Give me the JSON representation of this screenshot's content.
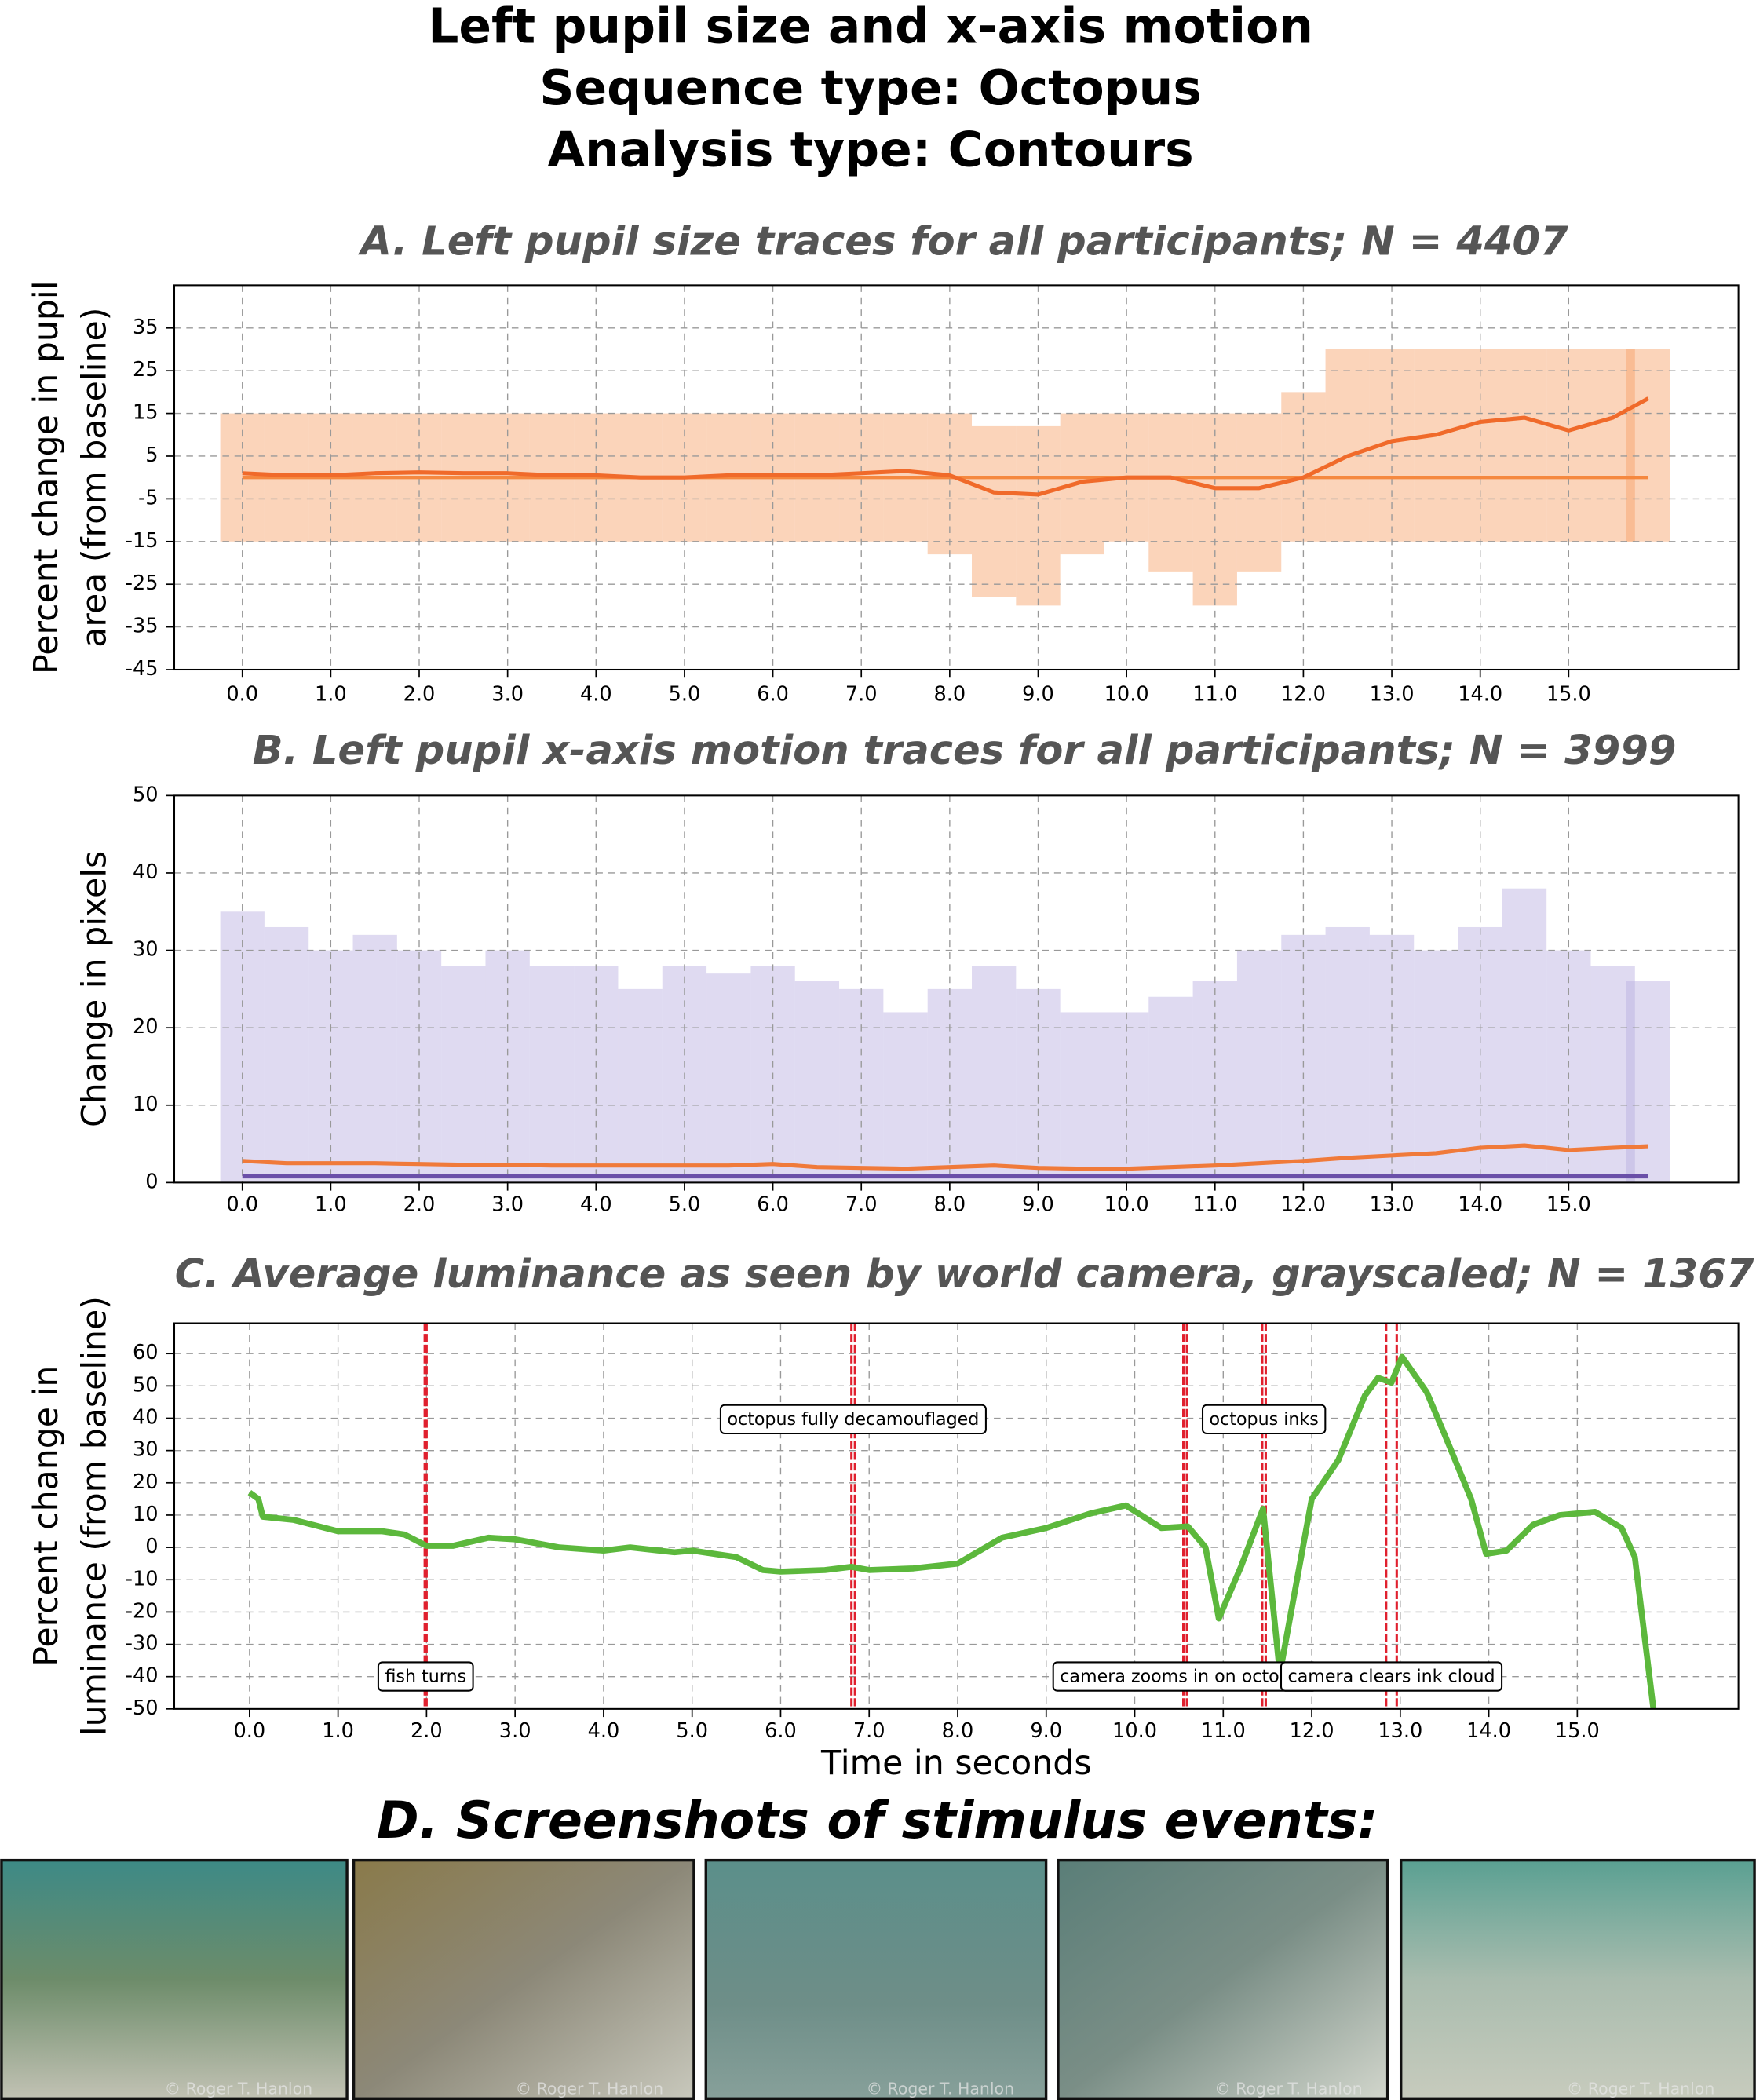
{
  "title_lines": [
    "Left pupil size and x-axis motion",
    "Sequence type: Octopus",
    "Analysis type: Contours"
  ],
  "chart_data": [
    {
      "type": "line",
      "title": "A. Left pupil size traces for all participants; N = 4407",
      "ylabel": [
        "Percent change in pupil",
        "area (from baseline)"
      ],
      "x": [
        0,
        0.5,
        1,
        1.5,
        2,
        2.5,
        3,
        3.5,
        4,
        4.5,
        5,
        5.5,
        6,
        6.5,
        7,
        7.5,
        8,
        8.5,
        9,
        9.5,
        10,
        10.5,
        11,
        11.5,
        12,
        12.5,
        13,
        13.5,
        14,
        14.5,
        15,
        15.5,
        15.9
      ],
      "series": [
        {
          "color": "#f06a2a",
          "values": [
            1,
            0.5,
            0.5,
            1,
            1.2,
            1,
            1,
            0.5,
            0.5,
            0,
            0,
            0.5,
            0.5,
            0.5,
            1,
            1.5,
            0.5,
            -3.5,
            -4,
            -1,
            0,
            0,
            -2.5,
            -2.5,
            0,
            5,
            8.5,
            10,
            13,
            14,
            11,
            14,
            18.5
          ]
        }
      ],
      "spread": {
        "color": "#f7a066",
        "low": [
          -15,
          -15,
          -15,
          -15,
          -15,
          -15,
          -15,
          -15,
          -15,
          -15,
          -15,
          -15,
          -15,
          -15,
          -15,
          -15,
          -18,
          -28,
          -30,
          -18,
          -15,
          -22,
          -30,
          -22,
          -15,
          -15,
          -15,
          -15,
          -15,
          -15,
          -15,
          -15,
          -15
        ],
        "high": [
          15,
          15,
          15,
          15,
          15,
          15,
          15,
          15,
          15,
          15,
          15,
          15,
          15,
          15,
          15,
          15,
          15,
          12,
          12,
          15,
          15,
          15,
          15,
          15,
          20,
          30,
          30,
          30,
          30,
          30,
          30,
          30,
          30
        ]
      },
      "reference_line": 0,
      "reference_color": "#f5883f",
      "xlim": [
        -0.77,
        16.92
      ],
      "ylim": [
        -45,
        45
      ],
      "xticks": [
        {
          "value": 0,
          "label": "0.0"
        },
        {
          "value": 1,
          "label": "1.0"
        },
        {
          "value": 2,
          "label": "2.0"
        },
        {
          "value": 3,
          "label": "3.0"
        },
        {
          "value": 4,
          "label": "4.0"
        },
        {
          "value": 5,
          "label": "5.0"
        },
        {
          "value": 6,
          "label": "6.0"
        },
        {
          "value": 7,
          "label": "7.0"
        },
        {
          "value": 8,
          "label": "8.0"
        },
        {
          "value": 9,
          "label": "9.0"
        },
        {
          "value": 10,
          "label": "10.0"
        },
        {
          "value": 11,
          "label": "11.0"
        },
        {
          "value": 12,
          "label": "12.0"
        },
        {
          "value": 13,
          "label": "13.0"
        },
        {
          "value": 14,
          "label": "14.0"
        },
        {
          "value": 15,
          "label": "15.0"
        }
      ],
      "yticks": [
        -45,
        -35,
        -25,
        -15,
        -5,
        5,
        15,
        25,
        35
      ],
      "grid": true
    },
    {
      "type": "line",
      "title": "B. Left pupil x-axis motion traces for all participants; N = 3999",
      "ylabel": [
        "Change in pixels"
      ],
      "x": [
        0,
        0.5,
        1,
        1.5,
        2,
        2.5,
        3,
        3.5,
        4,
        4.5,
        5,
        5.5,
        6,
        6.5,
        7,
        7.5,
        8,
        8.5,
        9,
        9.5,
        10,
        10.5,
        11,
        11.5,
        12,
        12.5,
        13,
        13.5,
        14,
        14.5,
        15,
        15.5,
        15.9
      ],
      "series": [
        {
          "color": "#6a4fa8",
          "values": [
            0.8,
            0.8,
            0.8,
            0.8,
            0.8,
            0.8,
            0.8,
            0.8,
            0.8,
            0.8,
            0.8,
            0.8,
            0.8,
            0.8,
            0.8,
            0.8,
            0.8,
            0.8,
            0.8,
            0.8,
            0.8,
            0.8,
            0.8,
            0.8,
            0.8,
            0.8,
            0.8,
            0.8,
            0.8,
            0.8,
            0.8,
            0.8,
            0.8
          ]
        },
        {
          "color": "#f07a3a",
          "values": [
            2.8,
            2.5,
            2.5,
            2.5,
            2.4,
            2.3,
            2.3,
            2.2,
            2.2,
            2.2,
            2.2,
            2.2,
            2.4,
            2.0,
            1.9,
            1.8,
            2.0,
            2.2,
            1.9,
            1.8,
            1.8,
            2.0,
            2.2,
            2.5,
            2.8,
            3.2,
            3.5,
            3.8,
            4.5,
            4.8,
            4.2,
            4.5,
            4.7
          ]
        }
      ],
      "spread": {
        "color": "#b9aee0",
        "low": [
          0,
          0,
          0,
          0,
          0,
          0,
          0,
          0,
          0,
          0,
          0,
          0,
          0,
          0,
          0,
          0,
          0,
          0,
          0,
          0,
          0,
          0,
          0,
          0,
          0,
          0,
          0,
          0,
          0,
          0,
          0,
          0,
          0
        ],
        "high": [
          35,
          33,
          30,
          32,
          30,
          28,
          30,
          28,
          28,
          25,
          28,
          27,
          28,
          26,
          25,
          22,
          25,
          28,
          25,
          22,
          22,
          24,
          26,
          30,
          32,
          33,
          32,
          30,
          33,
          38,
          30,
          28,
          26
        ]
      },
      "xlim": [
        -0.77,
        16.92
      ],
      "ylim": [
        0,
        50
      ],
      "xticks": [
        {
          "value": 0,
          "label": "0.0"
        },
        {
          "value": 1,
          "label": "1.0"
        },
        {
          "value": 2,
          "label": "2.0"
        },
        {
          "value": 3,
          "label": "3.0"
        },
        {
          "value": 4,
          "label": "4.0"
        },
        {
          "value": 5,
          "label": "5.0"
        },
        {
          "value": 6,
          "label": "6.0"
        },
        {
          "value": 7,
          "label": "7.0"
        },
        {
          "value": 8,
          "label": "8.0"
        },
        {
          "value": 9,
          "label": "9.0"
        },
        {
          "value": 10,
          "label": "10.0"
        },
        {
          "value": 11,
          "label": "11.0"
        },
        {
          "value": 12,
          "label": "12.0"
        },
        {
          "value": 13,
          "label": "13.0"
        },
        {
          "value": 14,
          "label": "14.0"
        },
        {
          "value": 15,
          "label": "15.0"
        }
      ],
      "yticks": [
        0,
        10,
        20,
        30,
        40,
        50
      ],
      "grid": true
    },
    {
      "type": "line",
      "title": "C. Average luminance as seen by world camera, grayscaled; N = 1367",
      "ylabel": [
        "Percent change in",
        "luminance (from baseline)"
      ],
      "xlabel": "Time in seconds",
      "x": [
        0,
        0.1,
        0.15,
        0.5,
        1,
        1.5,
        1.75,
        2,
        2.3,
        2.7,
        3,
        3.5,
        4,
        4.3,
        4.8,
        5,
        5.5,
        5.8,
        6,
        6.5,
        6.8,
        7,
        7.5,
        8,
        8.5,
        9,
        9.5,
        9.9,
        10.3,
        10.6,
        10.8,
        10.95,
        11.2,
        11.45,
        11.64,
        11.8,
        12.0,
        12.3,
        12.6,
        12.75,
        12.9,
        13.02,
        13.3,
        13.5,
        13.8,
        13.97,
        14.2,
        14.5,
        14.8,
        15.2,
        15.5,
        15.65,
        15.86
      ],
      "series": [
        {
          "color": "#5cb83c",
          "values": [
            17,
            15,
            9.5,
            8.5,
            5,
            5,
            4,
            0.5,
            0.5,
            3,
            2.5,
            0,
            -1,
            0,
            -1.5,
            -1,
            -3,
            -7,
            -7.5,
            -7,
            -6,
            -7,
            -6.5,
            -5,
            3,
            6,
            10.5,
            13,
            6,
            6.5,
            0,
            -22,
            -6,
            12,
            -39,
            -15,
            15,
            27,
            47,
            52.5,
            51,
            59,
            48,
            35,
            15,
            -2,
            -1,
            7,
            10,
            11,
            6,
            -3,
            -50
          ]
        }
      ],
      "event_color": "#e0202e",
      "events": [
        {
          "times": [
            1.98,
            2.0
          ],
          "label": "fish turns",
          "position": "bottom"
        },
        {
          "times": [
            6.8,
            6.84
          ],
          "label": "octopus fully decamouflaged",
          "position": "top"
        },
        {
          "times": [
            10.55,
            10.59
          ],
          "label": "camera zooms in on octopus",
          "position": "bottom"
        },
        {
          "times": [
            11.44,
            11.48
          ],
          "label": "octopus inks",
          "position": "top"
        },
        {
          "times": [
            12.84,
            12.96
          ],
          "label": "camera clears ink cloud",
          "position": "bottom"
        }
      ],
      "xlim": [
        -0.85,
        16.82
      ],
      "ylim": [
        -50,
        69.4
      ],
      "xticks": [
        {
          "value": 0,
          "label": "0.0"
        },
        {
          "value": 1,
          "label": "1.0"
        },
        {
          "value": 2,
          "label": "2.0"
        },
        {
          "value": 3,
          "label": "3.0"
        },
        {
          "value": 4,
          "label": "4.0"
        },
        {
          "value": 5,
          "label": "5.0"
        },
        {
          "value": 6,
          "label": "6.0"
        },
        {
          "value": 7,
          "label": "7.0"
        },
        {
          "value": 8,
          "label": "8.0"
        },
        {
          "value": 9,
          "label": "9.0"
        },
        {
          "value": 10,
          "label": "10.0"
        },
        {
          "value": 11,
          "label": "11.0"
        },
        {
          "value": 12,
          "label": "12.0"
        },
        {
          "value": 13,
          "label": "13.0"
        },
        {
          "value": 14,
          "label": "14.0"
        },
        {
          "value": 15,
          "label": "15.0"
        }
      ],
      "yticks": [
        -50,
        -40,
        -30,
        -20,
        -10,
        0,
        10,
        20,
        30,
        40,
        50,
        60
      ],
      "grid": true
    }
  ],
  "screenshots_title": "D. Screenshots of stimulus events:",
  "screenshots": [
    {
      "watermark": "© Roger T. Hanlon"
    },
    {
      "watermark": "© Roger T. Hanlon"
    },
    {
      "watermark": "© Roger T. Hanlon"
    },
    {
      "watermark": "© Roger T. Hanlon"
    },
    {
      "watermark": "© Roger T. Hanlon"
    }
  ]
}
